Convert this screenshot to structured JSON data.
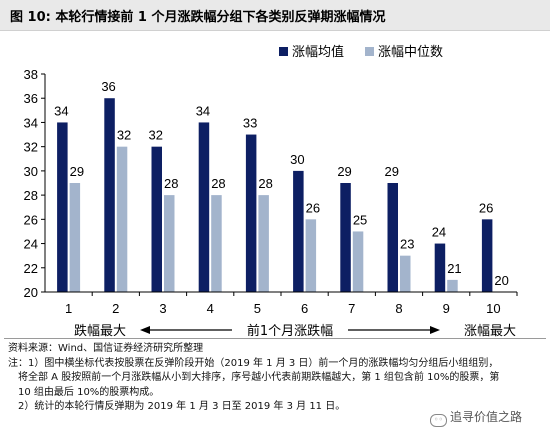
{
  "title": "图  10:  本轮行情接前 1 个月涨跌幅分组下各类别反弹期涨幅情况",
  "colors": {
    "mean": "#0d1f63",
    "median": "#a3b4cc",
    "axis": "#000000",
    "title_bg": "#e9e9e9"
  },
  "chart_data": {
    "type": "bar",
    "categories": [
      "1",
      "2",
      "3",
      "4",
      "5",
      "6",
      "7",
      "8",
      "9",
      "10"
    ],
    "series": [
      {
        "name": "涨幅均值",
        "values": [
          34,
          36,
          32,
          34,
          33,
          30,
          29,
          29,
          24,
          26
        ]
      },
      {
        "name": "涨幅中位数",
        "values": [
          29,
          32,
          28,
          28,
          28,
          26,
          25,
          23,
          21,
          20
        ]
      }
    ],
    "ylim": [
      20,
      38
    ],
    "yticks": [
      20,
      22,
      24,
      26,
      28,
      30,
      32,
      34,
      36,
      38
    ],
    "grid": false,
    "legend_position": "top-right",
    "x_annotation": {
      "left": "跌幅最大",
      "center": "前1个月涨跌幅",
      "right": "涨幅最大"
    }
  },
  "footer": {
    "source": "资料来源：Wind、国信证券经济研究所整理",
    "note1_line1": "注：1）图中横坐标代表按股票在反弹阶段开始（2019 年 1 月 3 日）前一个月的涨跌幅均匀分组后小组组别，",
    "note1_line2": "将全部 A 股按照前一个月涨跌幅从小到大排序，序号越小代表前期跌幅越大，第 1 组包含前 10%的股票，第",
    "note1_line3": "10 组由最后 10%的股票构成。",
    "note2": "2）统计的本轮行情反弹期为 2019 年 1 月 3 日至 2019 年 3 月 11 日。"
  },
  "watermark": "追寻价值之路"
}
